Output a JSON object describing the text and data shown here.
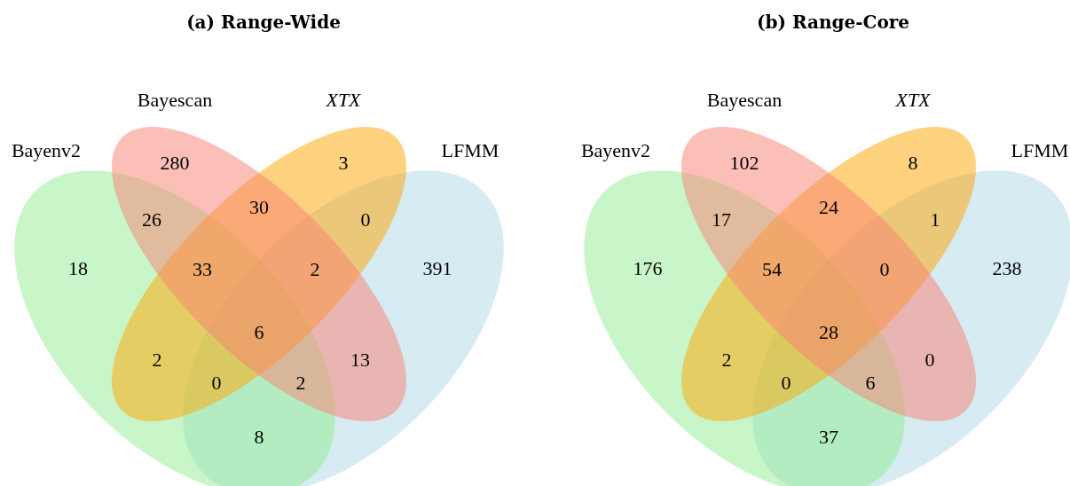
{
  "chart_data": [
    {
      "type": "other",
      "title": "(a) Range-Wide",
      "annotations": [
        "Bayenv2",
        "Bayescan",
        "XTX",
        "LFMM"
      ],
      "categories": [
        null,
        null,
        null,
        null,
        null,
        null,
        null,
        null,
        null,
        null,
        null,
        null,
        null,
        null,
        null
      ],
      "values": [
        280,
        3,
        26,
        30,
        0,
        18,
        33,
        2,
        391,
        6,
        2,
        13,
        0,
        2,
        8
      ],
      "data_labels": true
    },
    {
      "type": "other",
      "title": "(b) Range-Core",
      "annotations": [
        "Bayenv2",
        "Bayescan",
        "XTX",
        "LFMM"
      ],
      "categories": [
        null,
        null,
        null,
        null,
        null,
        null,
        null,
        null,
        null,
        null,
        null,
        null,
        null,
        null,
        null
      ],
      "values": [
        102,
        8,
        17,
        24,
        1,
        176,
        54,
        0,
        238,
        28,
        2,
        0,
        0,
        6,
        37
      ],
      "data_labels": true
    }
  ]
}
